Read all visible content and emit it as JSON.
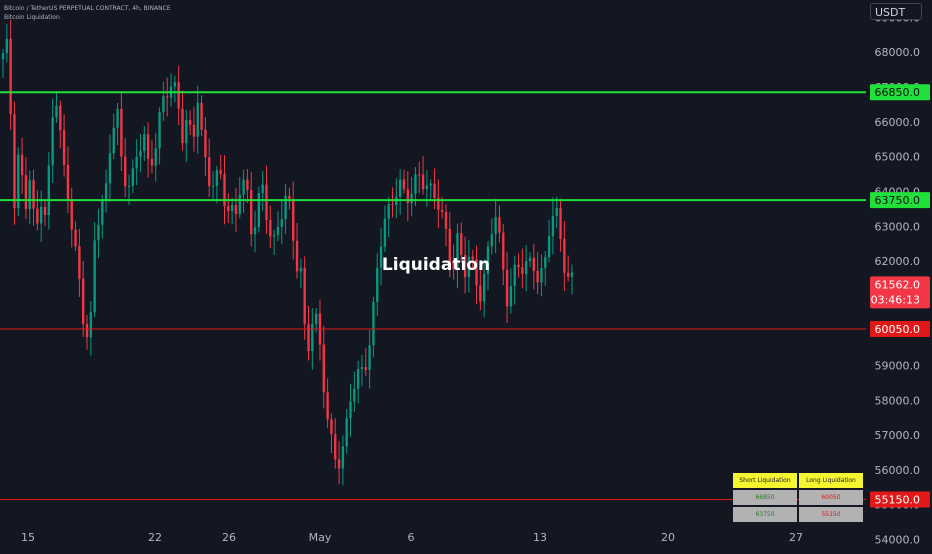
{
  "header": {
    "symbol_line": "Bitcoin / TetherUS PERPETUAL CONTRACT, 4h, BINANCE",
    "indicator_name": "Bitcoin Liquidation"
  },
  "currency_button": "USDT",
  "watermark_label": "Liquidation",
  "chart_data": {
    "type": "candlestick",
    "y_axis": {
      "ylim": [
        53700,
        69500
      ],
      "tick_values": [
        54000,
        55000,
        56000,
        57000,
        58000,
        59000,
        60000,
        61000,
        62000,
        63000,
        64000,
        65000,
        66000,
        67000,
        68000,
        69000
      ],
      "tick_labels": [
        "54000.0",
        "55000.0",
        "56000.0",
        "57000.0",
        "58000.0",
        "59000.0",
        "60000.0",
        "61000.0",
        "62000.0",
        "63000.0",
        "64000.0",
        "65000.0",
        "66000.0",
        "67000.0",
        "68000.0",
        "69000.0"
      ]
    },
    "x_axis": {
      "labels": [
        "15",
        "22",
        "26",
        "May",
        "6",
        "13",
        "20",
        "27"
      ]
    },
    "price_lines": [
      {
        "value": 66850,
        "label": "66850.0",
        "color": "#22e03a",
        "style": "thick"
      },
      {
        "value": 63750,
        "label": "63750.0",
        "color": "#22e03a",
        "style": "thick"
      },
      {
        "value": 60050,
        "label": "60050.0",
        "color": "#e01818",
        "style": "thin"
      },
      {
        "value": 55150,
        "label": "55150.0",
        "color": "#e01818",
        "style": "thin"
      }
    ],
    "current_price": {
      "value": 61562,
      "label": "61562.0",
      "countdown": "03:46:13",
      "color": "#f23645"
    },
    "colors": {
      "up": "#089981",
      "down": "#f23645",
      "background": "#131722"
    },
    "candles_path": [
      67800,
      68100,
      63700,
      65400,
      63400,
      64400,
      62400,
      63900,
      63400,
      66100,
      66700,
      64600,
      63900,
      62900,
      61600,
      60100,
      59400,
      62800,
      63700,
      64100,
      65700,
      66300,
      64400,
      64300,
      64600,
      65300,
      65600,
      64200,
      65300,
      66400,
      66900,
      67100,
      66600,
      65500,
      66300,
      65400,
      66900,
      64800,
      64200,
      64400,
      64700,
      63800,
      63200,
      63200,
      64500,
      64100,
      62800,
      63600,
      63900,
      62900,
      62600,
      63300,
      63900,
      63300,
      61900,
      61700,
      59400,
      60400,
      60100,
      58600,
      57300,
      56600,
      56400,
      56600,
      57900,
      58500,
      58900,
      59300,
      59900,
      61600,
      62800,
      63400,
      64000,
      64300,
      63800,
      63700,
      64200,
      64700,
      64300,
      63900,
      63700,
      63200,
      62700,
      61900,
      62700,
      61500,
      62000,
      61700,
      61200,
      61700,
      62700,
      63300,
      62000,
      61100,
      61600,
      61800,
      61700,
      61800,
      62000,
      61600,
      61900,
      63100,
      63300,
      62600,
      61700,
      61500
    ]
  },
  "liquidation_table": {
    "headers": [
      "Short Liquidation",
      "Long Liquidation"
    ],
    "rows": [
      [
        "66850",
        "60050"
      ],
      [
        "63750",
        "55150"
      ]
    ]
  }
}
